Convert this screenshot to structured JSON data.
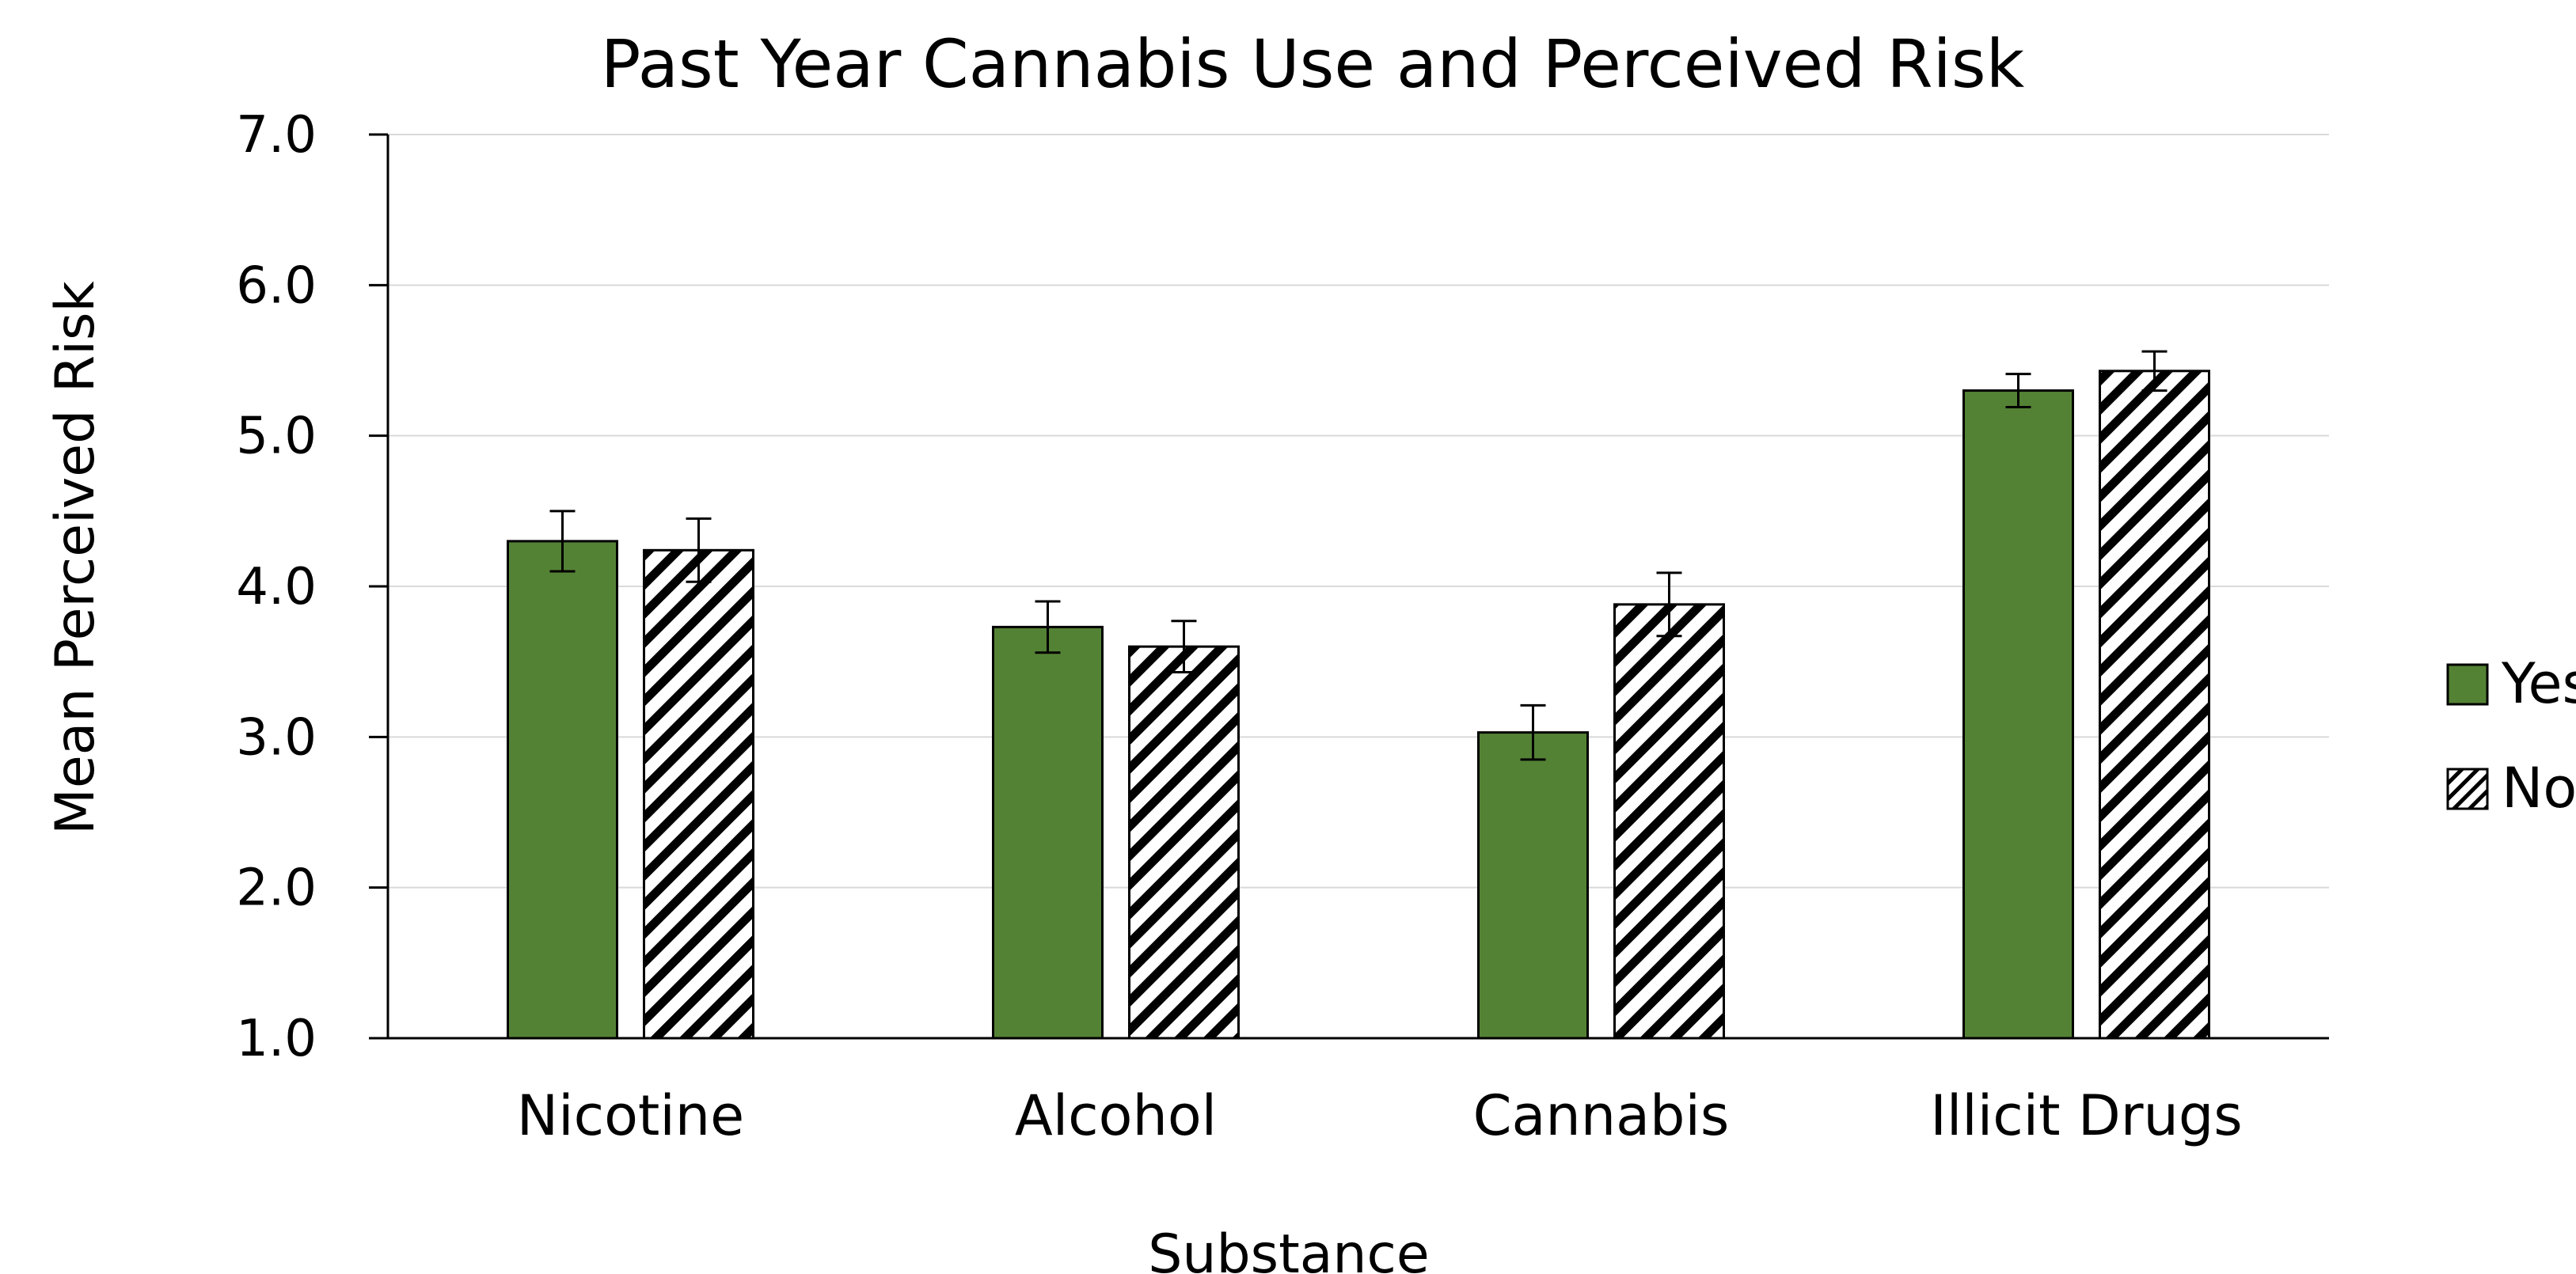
{
  "chart_data": {
    "type": "bar",
    "title": "Past Year Cannabis Use and Perceived Risk",
    "xlabel": "Substance",
    "ylabel": "Mean Perceived Risk",
    "categories": [
      "Nicotine",
      "Alcohol",
      "Cannabis",
      "Illicit Drugs"
    ],
    "series": [
      {
        "name": "Yes",
        "color": "#548235",
        "pattern": "solid",
        "values": [
          4.3,
          3.73,
          3.03,
          5.3
        ],
        "error": [
          0.2,
          0.17,
          0.18,
          0.11
        ]
      },
      {
        "name": "No",
        "color": "#000000",
        "pattern": "diagonal-hatch",
        "values": [
          4.24,
          3.6,
          3.88,
          5.43
        ],
        "error": [
          0.21,
          0.17,
          0.21,
          0.13
        ]
      }
    ],
    "ylim": [
      1.0,
      7.0
    ],
    "yticks": [
      "1.0",
      "2.0",
      "3.0",
      "4.0",
      "5.0",
      "6.0",
      "7.0"
    ],
    "grid": true,
    "legend_position": "right"
  }
}
